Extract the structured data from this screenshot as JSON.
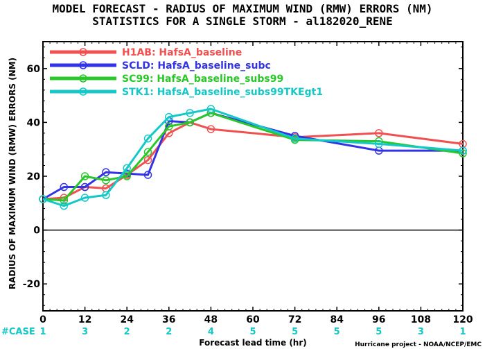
{
  "chart_data": {
    "type": "line",
    "title": "MODEL FORECAST - RADIUS OF MAXIMUM WIND (RMW) ERRORS (NM)",
    "subtitle": "STATISTICS FOR A SINGLE STORM - al182020_RENE",
    "xlabel": "Forecast lead time (hr)",
    "ylabel": "RADIUS OF MAXIMUM WIND (RMW) ERRORS (NM)",
    "xlim": [
      0,
      120
    ],
    "ylim": [
      -30,
      70
    ],
    "xticks": [
      0,
      12,
      24,
      36,
      48,
      60,
      72,
      84,
      96,
      108,
      120
    ],
    "yticks": [
      -20,
      0,
      20,
      40,
      60
    ],
    "case_label": "#CASE",
    "case_x": [
      0,
      12,
      24,
      36,
      48,
      60,
      72,
      84,
      96,
      108,
      120
    ],
    "case_counts": [
      "1",
      "3",
      "2",
      "2",
      "4",
      "5",
      "5",
      "5",
      "5",
      "3",
      "1"
    ],
    "legend_position": "top-left",
    "series": [
      {
        "name": "H1AB: HafsA_baseline",
        "color": "#f05050",
        "x": [
          0,
          6,
          12,
          18,
          24,
          30,
          36,
          42,
          48,
          72,
          96,
          120
        ],
        "y": [
          11.5,
          12,
          16,
          15.5,
          20.5,
          26,
          36,
          40,
          37.5,
          34.5,
          36,
          32
        ]
      },
      {
        "name": "SCLD: HafsA_baseline_subc",
        "color": "#3232e6",
        "x": [
          0,
          6,
          12,
          18,
          24,
          30,
          36,
          42,
          48,
          72,
          96,
          120
        ],
        "y": [
          11.5,
          16,
          16,
          21.5,
          21,
          20.5,
          40.5,
          40,
          43.5,
          35,
          29.5,
          29.5
        ]
      },
      {
        "name": "SC99: HafsA_baseline_subs99",
        "color": "#28c828",
        "x": [
          0,
          6,
          12,
          18,
          24,
          30,
          36,
          42,
          48,
          72,
          96,
          120
        ],
        "y": [
          11.5,
          11,
          20,
          18.5,
          20,
          29,
          38.5,
          40,
          43.5,
          33.5,
          33,
          28.5
        ]
      },
      {
        "name": "STK1: HafsA_baseline_subs99TKEgt1",
        "color": "#14c8c8",
        "x": [
          0,
          6,
          12,
          18,
          24,
          30,
          36,
          42,
          48,
          72,
          96,
          120
        ],
        "y": [
          11.5,
          9,
          12,
          13,
          23,
          34,
          42,
          43.5,
          45,
          34,
          32,
          29.5
        ]
      }
    ]
  },
  "footer": {
    "credit": "Hurricane project - NOAA/NCEP/EMC"
  }
}
